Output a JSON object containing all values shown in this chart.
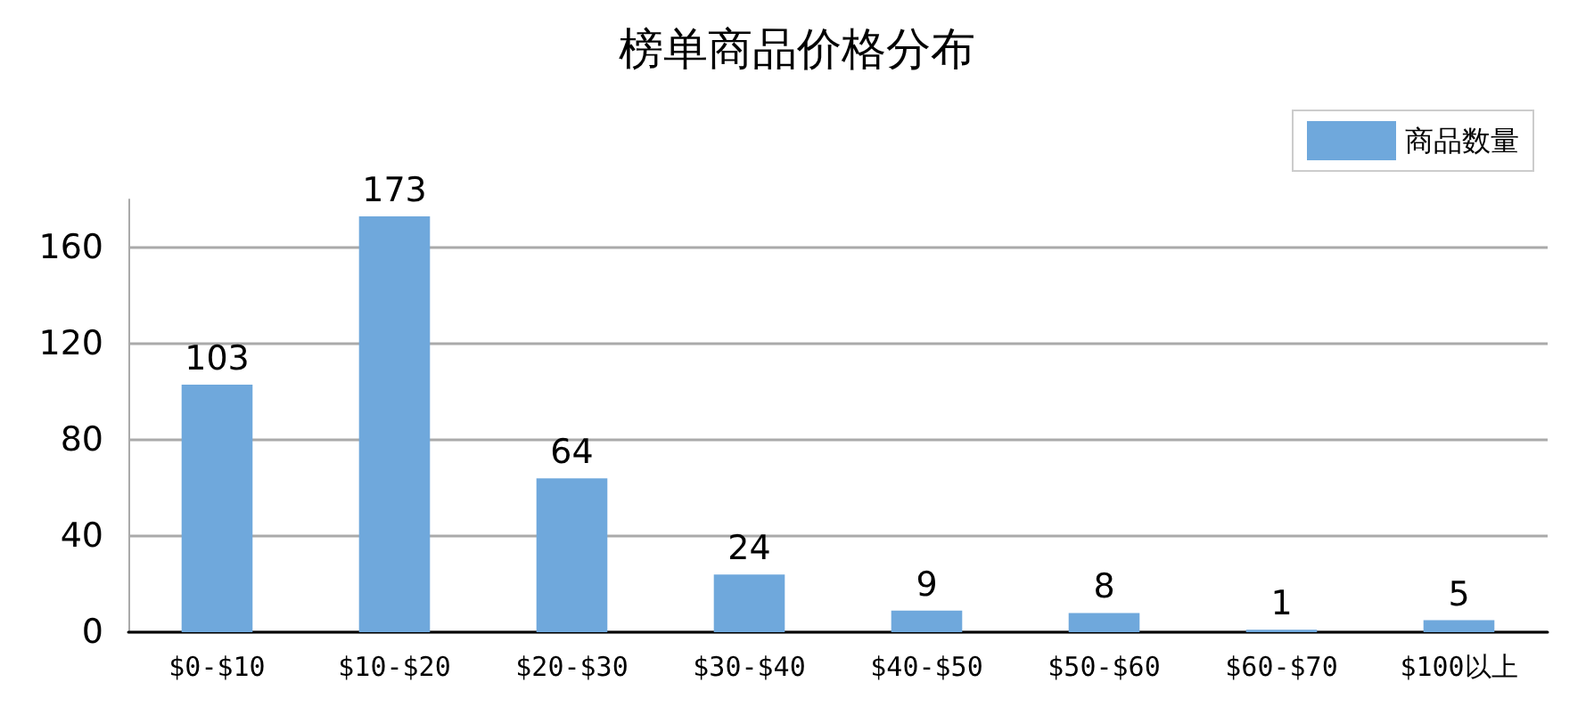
{
  "chart_data": {
    "type": "bar",
    "title": "榜单商品价格分布",
    "categories": [
      "$0-$10",
      "$10-$20",
      "$20-$30",
      "$30-$40",
      "$40-$50",
      "$50-$60",
      "$60-$70",
      "$100以上"
    ],
    "series": [
      {
        "name": "商品数量",
        "color": "#6fa8dc",
        "values": [
          103,
          173,
          64,
          24,
          9,
          8,
          1,
          5
        ]
      }
    ],
    "ylim": [
      0,
      180
    ],
    "yticks": [
      0,
      40,
      80,
      120,
      160
    ],
    "grid": "y",
    "legend": "top right",
    "data_labels": true
  }
}
